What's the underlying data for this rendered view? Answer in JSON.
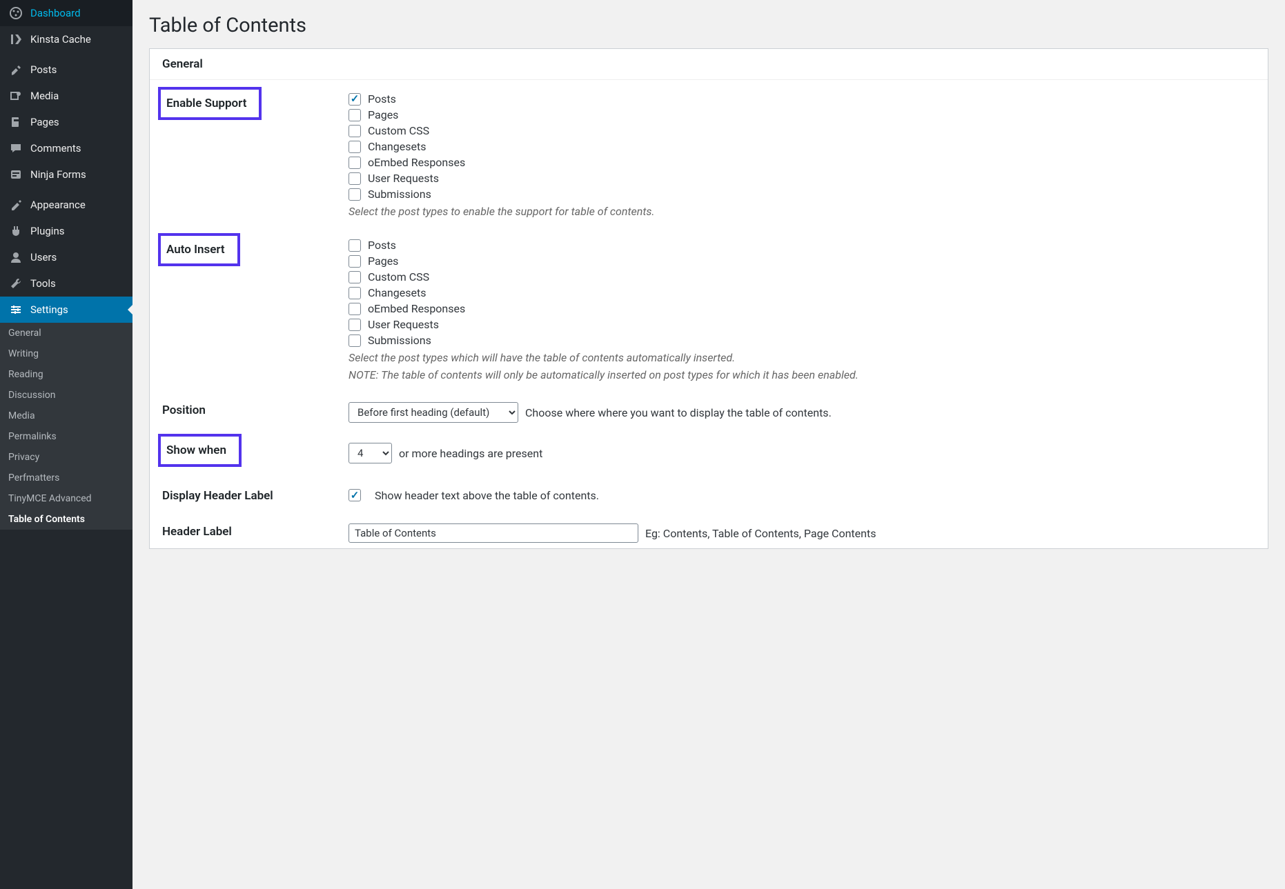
{
  "sidebar": {
    "items": [
      {
        "icon": "dashboard",
        "label": "Dashboard"
      },
      {
        "icon": "kinsta",
        "label": "Kinsta Cache"
      }
    ],
    "items2": [
      {
        "icon": "pin",
        "label": "Posts"
      },
      {
        "icon": "media",
        "label": "Media"
      },
      {
        "icon": "pages",
        "label": "Pages"
      },
      {
        "icon": "comments",
        "label": "Comments"
      },
      {
        "icon": "ninja",
        "label": "Ninja Forms"
      }
    ],
    "items3": [
      {
        "icon": "appearance",
        "label": "Appearance"
      },
      {
        "icon": "plugins",
        "label": "Plugins"
      },
      {
        "icon": "users",
        "label": "Users"
      },
      {
        "icon": "tools",
        "label": "Tools"
      },
      {
        "icon": "settings",
        "label": "Settings",
        "active": true
      }
    ],
    "sub": [
      "General",
      "Writing",
      "Reading",
      "Discussion",
      "Media",
      "Permalinks",
      "Privacy",
      "Perfmatters",
      "TinyMCE Advanced"
    ],
    "subCurrent": "Table of Contents"
  },
  "page": {
    "title": "Table of Contents"
  },
  "panel": {
    "heading": "General",
    "enableSupport": {
      "label": "Enable Support",
      "options": [
        {
          "label": "Posts",
          "checked": true
        },
        {
          "label": "Pages",
          "checked": false
        },
        {
          "label": "Custom CSS",
          "checked": false
        },
        {
          "label": "Changesets",
          "checked": false
        },
        {
          "label": "oEmbed Responses",
          "checked": false
        },
        {
          "label": "User Requests",
          "checked": false
        },
        {
          "label": "Submissions",
          "checked": false
        }
      ],
      "hint": "Select the post types to enable the support for table of contents."
    },
    "autoInsert": {
      "label": "Auto Insert",
      "options": [
        {
          "label": "Posts",
          "checked": false
        },
        {
          "label": "Pages",
          "checked": false
        },
        {
          "label": "Custom CSS",
          "checked": false
        },
        {
          "label": "Changesets",
          "checked": false
        },
        {
          "label": "oEmbed Responses",
          "checked": false
        },
        {
          "label": "User Requests",
          "checked": false
        },
        {
          "label": "Submissions",
          "checked": false
        }
      ],
      "hint1": "Select the post types which will have the table of contents automatically inserted.",
      "hint2": "NOTE: The table of contents will only be automatically inserted on post types for which it has been enabled."
    },
    "position": {
      "label": "Position",
      "selected": "Before first heading (default)",
      "desc": "Choose where where you want to display the table of contents."
    },
    "showWhen": {
      "label": "Show when",
      "value": "4",
      "suffix": "or more headings are present"
    },
    "displayHeader": {
      "label": "Display Header Label",
      "checked": true,
      "text": "Show header text above the table of contents."
    },
    "headerLabel": {
      "label": "Header Label",
      "value": "Table of Contents",
      "eg": "Eg: Contents, Table of Contents, Page Contents"
    }
  },
  "colors": {
    "highlight": "#5333ed",
    "wpBlue": "#0073aa"
  }
}
